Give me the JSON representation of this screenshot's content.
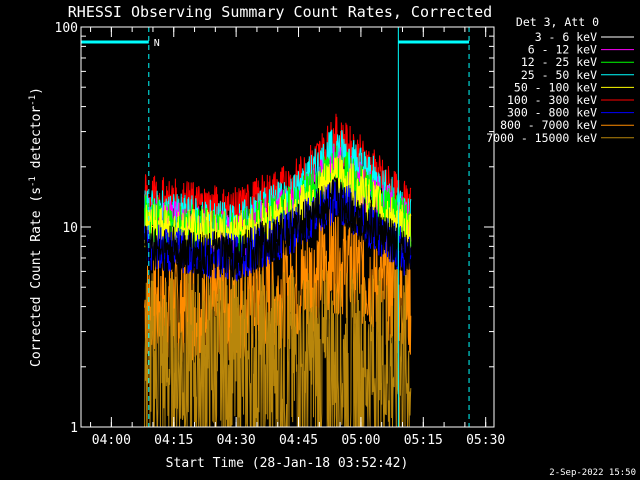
{
  "chart_data": {
    "type": "line",
    "title": "RHESSI Observing Summary Count Rates, Corrected",
    "xlabel": "Start Time (28-Jan-18 03:52:42)",
    "ylabel_main": "Corrected Count Rate (s",
    "ylabel_sup1": "-1",
    "ylabel_mid": " detector",
    "ylabel_sup2": "-1",
    "ylabel_end": ")",
    "yscale": "log",
    "ylim": [
      1,
      100
    ],
    "yticks": [
      {
        "value": 1,
        "label": "1"
      },
      {
        "value": 10,
        "label": "10"
      },
      {
        "value": 100,
        "label": "100"
      }
    ],
    "xlim": [
      "03:52:42",
      "05:32:00"
    ],
    "xticks": [
      {
        "value": "04:00",
        "label": "04:00"
      },
      {
        "value": "04:15",
        "label": "04:15"
      },
      {
        "value": "04:30",
        "label": "04:30"
      },
      {
        "value": "04:45",
        "label": "04:45"
      },
      {
        "value": "05:00",
        "label": "05:00"
      },
      {
        "value": "05:15",
        "label": "05:15"
      },
      {
        "value": "05:30",
        "label": "05:30"
      }
    ],
    "legend_header": "Det 3, Att 0",
    "legend_placement": "outside-right",
    "series": [
      {
        "name": "3 - 6 keV",
        "color": "#000000",
        "values": [
          {
            "t": "04:08",
            "y": 8
          },
          {
            "t": "04:30",
            "y": 7
          },
          {
            "t": "04:45",
            "y": 10
          },
          {
            "t": "04:54",
            "y": 14
          },
          {
            "t": "05:00",
            "y": 11
          },
          {
            "t": "05:12",
            "y": 7
          }
        ]
      },
      {
        "name": "6 - 12 keV",
        "color": "#ff00ff",
        "values": [
          {
            "t": "04:08",
            "y": 11
          },
          {
            "t": "04:30",
            "y": 9
          },
          {
            "t": "04:45",
            "y": 13
          },
          {
            "t": "04:54",
            "y": 20
          },
          {
            "t": "05:00",
            "y": 16
          },
          {
            "t": "05:12",
            "y": 10
          }
        ]
      },
      {
        "name": "12 - 25 keV",
        "color": "#00ff00",
        "values": [
          {
            "t": "04:08",
            "y": 11
          },
          {
            "t": "04:30",
            "y": 9
          },
          {
            "t": "04:45",
            "y": 13
          },
          {
            "t": "04:54",
            "y": 20
          },
          {
            "t": "05:00",
            "y": 16
          },
          {
            "t": "05:12",
            "y": 10
          }
        ]
      },
      {
        "name": "25 - 50 keV",
        "color": "#00ffff",
        "values": [
          {
            "t": "04:08",
            "y": 12
          },
          {
            "t": "04:30",
            "y": 10
          },
          {
            "t": "04:45",
            "y": 15
          },
          {
            "t": "04:54",
            "y": 25
          },
          {
            "t": "05:00",
            "y": 20
          },
          {
            "t": "05:12",
            "y": 11
          }
        ]
      },
      {
        "name": "50 - 100 keV",
        "color": "#ffff00",
        "values": [
          {
            "t": "04:08",
            "y": 10
          },
          {
            "t": "04:30",
            "y": 9
          },
          {
            "t": "04:45",
            "y": 12
          },
          {
            "t": "04:54",
            "y": 18
          },
          {
            "t": "05:00",
            "y": 15
          },
          {
            "t": "05:12",
            "y": 9
          }
        ]
      },
      {
        "name": "100 - 300 keV",
        "color": "#ff0000",
        "values": [
          {
            "t": "04:08",
            "y": 14
          },
          {
            "t": "04:30",
            "y": 12
          },
          {
            "t": "04:45",
            "y": 17
          },
          {
            "t": "04:54",
            "y": 28
          },
          {
            "t": "05:00",
            "y": 22
          },
          {
            "t": "05:12",
            "y": 12
          }
        ]
      },
      {
        "name": "300 - 800 keV",
        "color": "#0000ff",
        "values": [
          {
            "t": "04:08",
            "y": 8
          },
          {
            "t": "04:30",
            "y": 7
          },
          {
            "t": "04:45",
            "y": 10
          },
          {
            "t": "04:54",
            "y": 14
          },
          {
            "t": "05:00",
            "y": 11
          },
          {
            "t": "05:12",
            "y": 7
          }
        ]
      },
      {
        "name": "800 - 7000 keV",
        "color": "#ff8c00",
        "values": [
          {
            "t": "04:08",
            "y": 4
          },
          {
            "t": "04:30",
            "y": 4
          },
          {
            "t": "04:45",
            "y": 5
          },
          {
            "t": "04:54",
            "y": 7
          },
          {
            "t": "05:00",
            "y": 6
          },
          {
            "t": "05:12",
            "y": 4
          }
        ]
      },
      {
        "name": "7000 - 15000 keV",
        "color": "#b8860b",
        "values": [
          {
            "t": "04:08",
            "y": 2
          },
          {
            "t": "04:30",
            "y": 2
          },
          {
            "t": "04:45",
            "y": 2
          },
          {
            "t": "04:54",
            "y": 2
          },
          {
            "t": "05:00",
            "y": 2
          },
          {
            "t": "05:12",
            "y": 2
          }
        ]
      }
    ],
    "annotations": [
      {
        "type": "night_bar",
        "from": "03:52:42",
        "to": "04:09:00",
        "color": "#00ffff",
        "label": "N"
      },
      {
        "type": "night_bar",
        "from": "05:09:00",
        "to": "05:26:00",
        "color": "#00ffff",
        "label": ""
      }
    ],
    "grid": false
  },
  "timestamp": "2-Sep-2022 15:50"
}
